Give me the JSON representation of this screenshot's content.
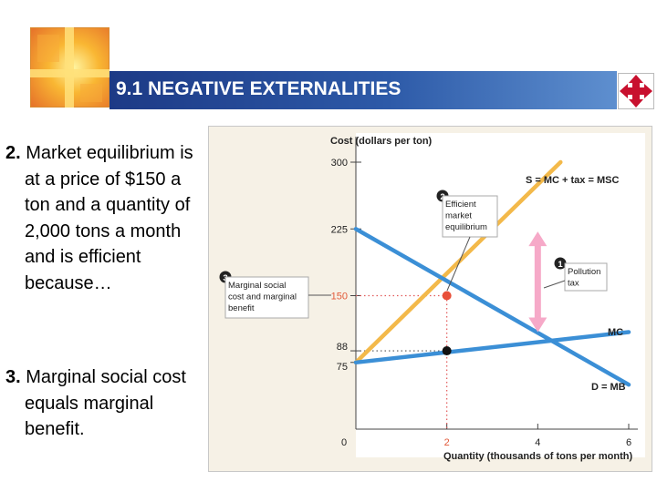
{
  "header": {
    "title": "9.1 NEGATIVE EXTERNALITIES"
  },
  "icons": {
    "logo": "window-cross-logo",
    "nav": "four-way-arrows-icon"
  },
  "text": {
    "p2_number": "2.",
    "p2_body": " Market equilibrium is at a price of $150 a ton and a quantity of 2,000 tons a month and is efficient because…",
    "p3_number": "3.",
    "p3_body": " Marginal social cost equals marginal benefit."
  },
  "chart_data": {
    "type": "line",
    "ylabel": "Cost (dollars per ton)",
    "xlabel": "Quantity (thousands of tons per month)",
    "xlim": [
      0,
      6
    ],
    "ylim": [
      0,
      300
    ],
    "x_ticks": [
      {
        "value": 2,
        "label": "2"
      },
      {
        "value": 4,
        "label": "4"
      },
      {
        "value": 6,
        "label": "6"
      }
    ],
    "y_ticks": [
      {
        "value": 75,
        "label": "75"
      },
      {
        "value": 88,
        "label": "88"
      },
      {
        "value": 150,
        "label": "150"
      },
      {
        "value": 225,
        "label": "225"
      },
      {
        "value": 300,
        "label": "300"
      }
    ],
    "origin_label": "0",
    "series": [
      {
        "name": "S = MC + tax = MSC",
        "color": "#f3b94a",
        "points": [
          [
            0,
            75
          ],
          [
            4.5,
            300
          ]
        ]
      },
      {
        "name": "MC",
        "color": "#3b8fd6",
        "points": [
          [
            0,
            75
          ],
          [
            6,
            109
          ]
        ]
      },
      {
        "name": "D = MB",
        "color": "#3b8fd6",
        "points": [
          [
            0,
            225
          ],
          [
            6,
            50
          ]
        ]
      }
    ],
    "points": [
      {
        "x": 2,
        "y": 150,
        "color": "#e8503a"
      },
      {
        "x": 2,
        "y": 88,
        "color": "#111111"
      }
    ],
    "annotations": [
      {
        "number": "1",
        "text": "Pollution tax"
      },
      {
        "number": "2",
        "text": "Efficient market equilibrium"
      },
      {
        "number": "3",
        "text": "Marginal social cost and marginal benefit"
      }
    ],
    "tax_arrow": {
      "x": 4,
      "y_from": 109,
      "y_to": 222,
      "color": "#f6a9c8"
    },
    "colors": {
      "panel": "#f6f1e6",
      "border": "#c8c8c8",
      "guide": "#e25a5a"
    }
  }
}
